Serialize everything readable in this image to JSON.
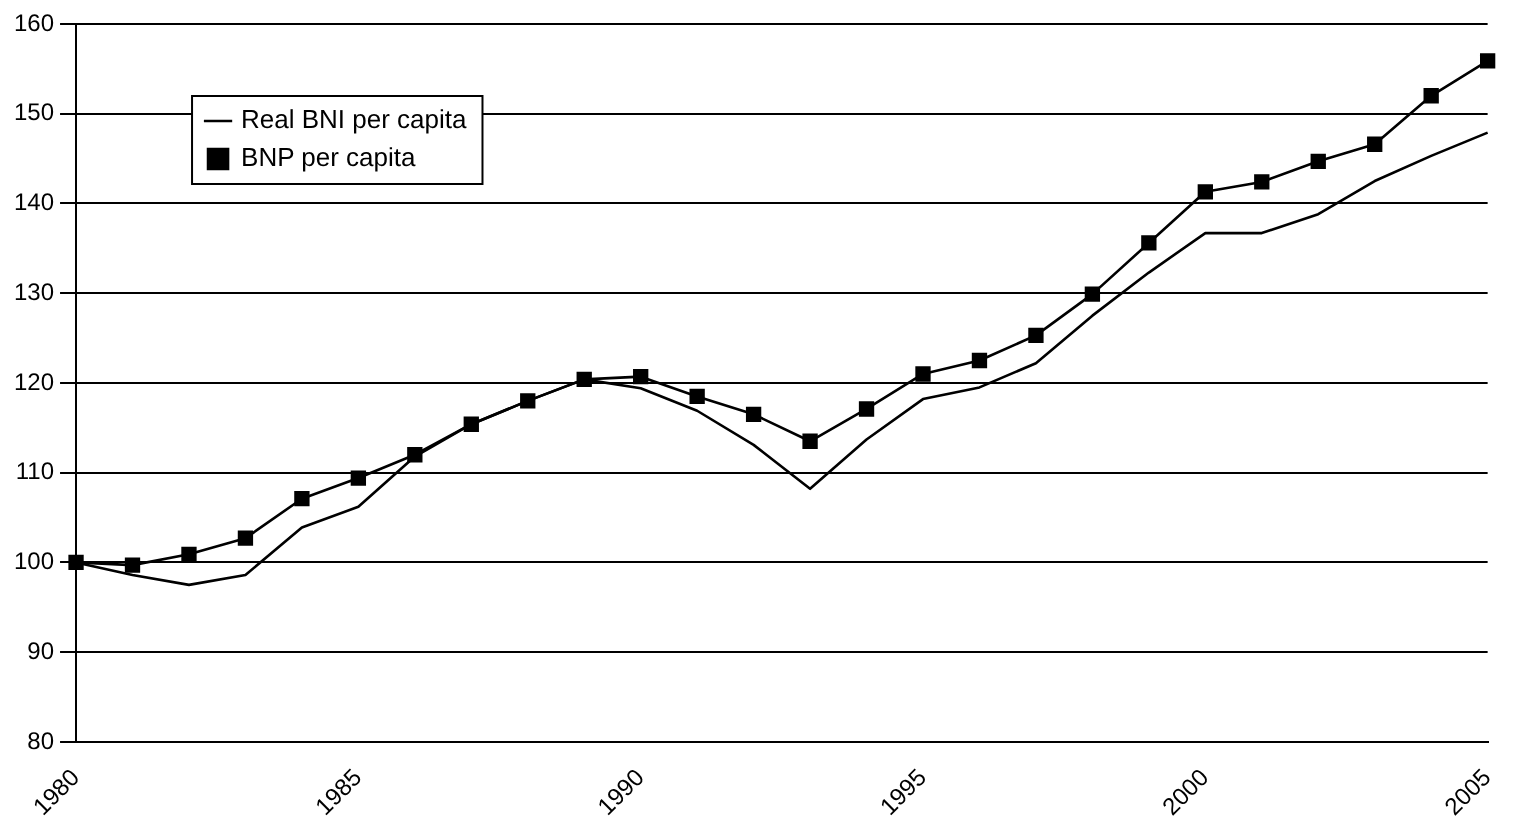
{
  "chart_data": {
    "type": "line",
    "categories": [
      "1980",
      null,
      null,
      null,
      null,
      "1985",
      null,
      null,
      null,
      null,
      "1990",
      null,
      null,
      null,
      null,
      "1995",
      null,
      null,
      null,
      null,
      "2000",
      null,
      null,
      null,
      null,
      "2005"
    ],
    "series": [
      {
        "name": "Real BNI per capita",
        "color": "#000000",
        "marker": "none",
        "values": [
          100,
          98.6,
          97.5,
          98.6,
          103.9,
          106.2,
          111.8,
          115.4,
          118,
          120.4,
          119.4,
          116.9,
          113.1,
          108.2,
          113.7,
          118.2,
          119.5,
          122.2,
          127.5,
          132.3,
          136.7,
          136.7,
          138.8,
          142.5,
          145.3,
          147.9
        ]
      },
      {
        "name": "BNP per capita",
        "color": "#000000",
        "marker": "square",
        "values": [
          100,
          99.7,
          100.9,
          102.7,
          107.1,
          109.4,
          112,
          115.4,
          118,
          120.4,
          120.7,
          118.5,
          116.5,
          113.5,
          117.1,
          121,
          122.5,
          125.3,
          129.9,
          135.6,
          141.3,
          142.4,
          144.7,
          146.6,
          152,
          155.9
        ]
      }
    ],
    "ylim": [
      80,
      160
    ],
    "yticks": [
      80,
      90,
      100,
      110,
      120,
      130,
      140,
      150,
      160
    ],
    "grid": "y",
    "legend": "top left",
    "line_style": "solid"
  }
}
